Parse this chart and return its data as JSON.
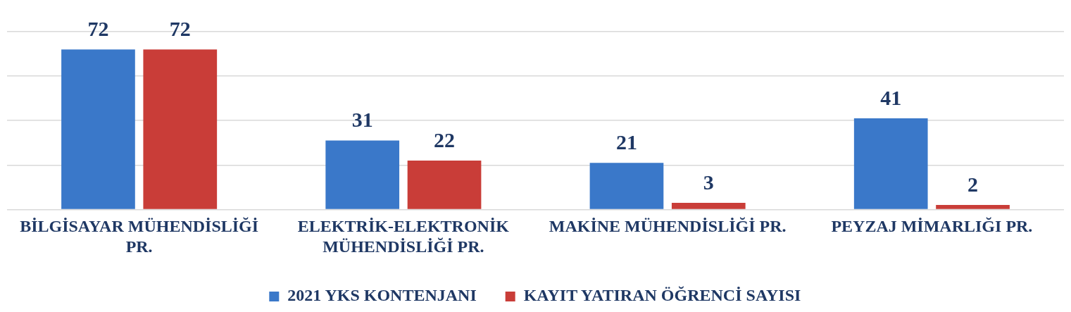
{
  "chart_data": {
    "type": "bar",
    "categories": [
      "BİLGİSAYAR MÜHENDİSLİĞİ PR.",
      "ELEKTRİK-ELEKTRONİK MÜHENDİSLİĞİ PR.",
      "MAKİNE MÜHENDİSLİĞİ PR.",
      "PEYZAJ MİMARLIĞI PR."
    ],
    "series": [
      {
        "name": "2021 YKS KONTENJANI",
        "color": "#3a78c9",
        "values": [
          72,
          31,
          21,
          41
        ]
      },
      {
        "name": "KAYIT YATIRAN ÖĞRENCİ SAYISI",
        "color": "#c93d38",
        "values": [
          72,
          22,
          3,
          2
        ]
      }
    ],
    "ylim": [
      0,
      80
    ],
    "yticks": [
      {
        "value": 0,
        "label": null
      },
      {
        "value": 20,
        "label": null
      },
      {
        "value": 40,
        "label": null
      },
      {
        "value": 60,
        "label": null
      },
      {
        "value": 80,
        "label": null
      }
    ],
    "tick_labels": "x",
    "grid": "y",
    "legend": "bottom",
    "data_labels": true
  }
}
